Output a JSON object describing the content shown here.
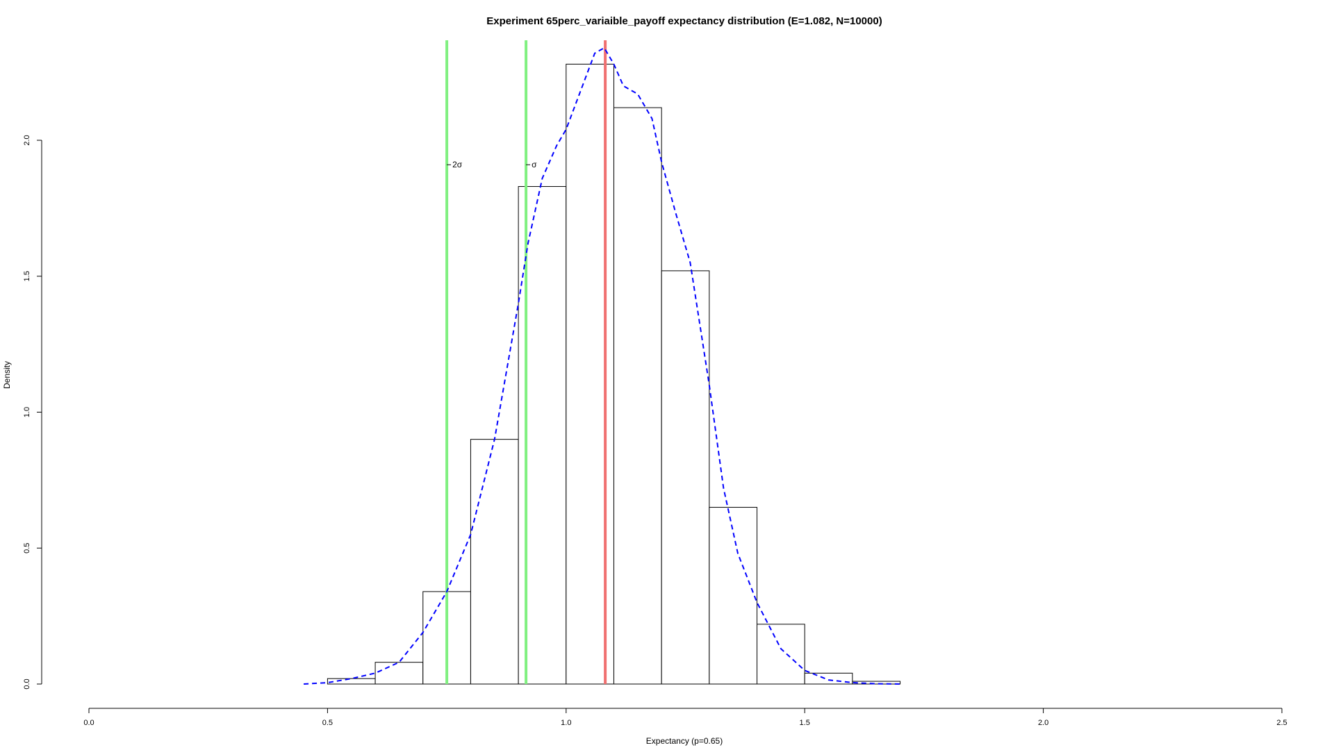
{
  "chart_data": {
    "type": "bar",
    "title": "Experiment 65perc_variaible_payoff expectancy distribution (E=1.082, N=10000)",
    "xlabel": "Expectancy (p=0.65)",
    "ylabel": "Density",
    "xlim": [
      0.0,
      2.5
    ],
    "ylim": [
      0.0,
      2.35
    ],
    "x_ticks": [
      0.0,
      0.5,
      1.0,
      1.5,
      2.0,
      2.5
    ],
    "x_tick_labels": [
      "0.0",
      "0.5",
      "1.0",
      "1.5",
      "2.0",
      "2.5"
    ],
    "y_ticks": [
      0.0,
      0.5,
      1.0,
      1.5,
      2.0
    ],
    "y_tick_labels": [
      "0.0",
      "0.5",
      "1.0",
      "1.5",
      "2.0"
    ],
    "grid": false,
    "histogram": {
      "bin_edges": [
        0.5,
        0.6,
        0.7,
        0.8,
        0.9,
        1.0,
        1.1,
        1.2,
        1.3,
        1.4,
        1.5,
        1.6,
        1.7
      ],
      "density": [
        0.02,
        0.08,
        0.34,
        0.9,
        1.83,
        2.28,
        2.12,
        1.52,
        0.65,
        0.22,
        0.04,
        0.01
      ]
    },
    "density_curve": {
      "color": "#0000ff",
      "style": "dashed",
      "x": [
        0.45,
        0.5,
        0.55,
        0.6,
        0.65,
        0.7,
        0.75,
        0.8,
        0.85,
        0.9,
        0.92,
        0.95,
        0.98,
        1.0,
        1.03,
        1.06,
        1.08,
        1.1,
        1.12,
        1.15,
        1.18,
        1.2,
        1.23,
        1.26,
        1.3,
        1.33,
        1.36,
        1.4,
        1.45,
        1.5,
        1.55,
        1.6,
        1.65,
        1.7
      ],
      "y": [
        0.0,
        0.005,
        0.02,
        0.04,
        0.08,
        0.19,
        0.34,
        0.55,
        0.9,
        1.4,
        1.62,
        1.86,
        1.98,
        2.04,
        2.18,
        2.32,
        2.34,
        2.28,
        2.2,
        2.17,
        2.08,
        1.92,
        1.73,
        1.55,
        1.1,
        0.72,
        0.48,
        0.3,
        0.13,
        0.05,
        0.015,
        0.005,
        0.001,
        0.0
      ]
    },
    "vertical_lines": [
      {
        "x": 0.75,
        "color": "#80f080",
        "label": "2σ"
      },
      {
        "x": 0.916,
        "color": "#80f080",
        "label": "σ"
      },
      {
        "x": 1.082,
        "color": "#f07070",
        "label": ""
      }
    ],
    "annotation_y": 1.91
  }
}
